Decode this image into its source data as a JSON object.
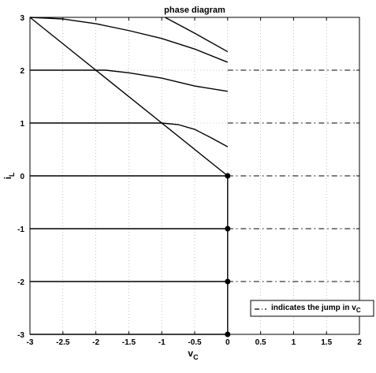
{
  "chart_data": {
    "type": "line",
    "title": "phase diagram",
    "xlabel": "v",
    "xlabel_sub": "C",
    "ylabel": "i",
    "ylabel_sub": "L",
    "xlim": [
      -3,
      2
    ],
    "ylim": [
      -3,
      3
    ],
    "x_ticks": [
      "-3",
      "-2.5",
      "-2",
      "-1.5",
      "-1",
      "-0.5",
      "0",
      "0.5",
      "1",
      "1.5",
      "2"
    ],
    "y_ticks": [
      "-3",
      "-2",
      "-1",
      "0",
      "1",
      "2",
      "3"
    ],
    "grid": true,
    "legend_text": "indicates the jump in v",
    "legend_sub": "C",
    "legend_placement": "bottom-right",
    "line_color": "#000000",
    "series": [
      {
        "style": "solid",
        "x": [
          -3,
          0
        ],
        "y": [
          3,
          0
        ]
      },
      {
        "style": "solid",
        "x": [
          -3,
          0
        ],
        "y": [
          0,
          0
        ]
      },
      {
        "style": "solid",
        "x": [
          -3,
          0
        ],
        "y": [
          -1,
          -1
        ]
      },
      {
        "style": "solid",
        "x": [
          -3,
          0
        ],
        "y": [
          -2,
          -2
        ]
      },
      {
        "style": "solid",
        "x": [
          -3,
          0
        ],
        "y": [
          -3,
          -3
        ]
      },
      {
        "style": "solid",
        "x": [
          0,
          0
        ],
        "y": [
          0,
          -3
        ]
      },
      {
        "style": "solid",
        "x": [
          -3,
          -1,
          -0.75,
          -0.5,
          -0.25,
          0
        ],
        "y": [
          1,
          1,
          0.97,
          0.88,
          0.72,
          0.55
        ]
      },
      {
        "style": "solid",
        "x": [
          -3,
          -1.85,
          -1.5,
          -1,
          -0.5,
          0
        ],
        "y": [
          2,
          2,
          1.95,
          1.85,
          1.7,
          1.6
        ]
      },
      {
        "style": "solid",
        "x": [
          -3,
          -2.5,
          -2,
          -1.5,
          -1,
          -0.5,
          0
        ],
        "y": [
          3,
          2.97,
          2.88,
          2.75,
          2.6,
          2.4,
          2.15
        ]
      },
      {
        "style": "solid",
        "x": [
          -0.95,
          -0.5,
          0
        ],
        "y": [
          3,
          2.7,
          2.35
        ]
      },
      {
        "style": "dashdot",
        "x": [
          0,
          2
        ],
        "y": [
          2,
          2
        ]
      },
      {
        "style": "dashdot",
        "x": [
          0,
          2
        ],
        "y": [
          1,
          1
        ]
      },
      {
        "style": "dashdot",
        "x": [
          0,
          2
        ],
        "y": [
          0,
          0
        ]
      },
      {
        "style": "dashdot",
        "x": [
          0,
          2
        ],
        "y": [
          -1,
          -1
        ]
      },
      {
        "style": "dashdot",
        "x": [
          0,
          2
        ],
        "y": [
          -2,
          -2
        ]
      },
      {
        "style": "dashdot",
        "x": [
          0,
          2
        ],
        "y": [
          -3,
          -3
        ]
      }
    ],
    "points": [
      {
        "x": 0,
        "y": 0
      },
      {
        "x": 0,
        "y": -1
      },
      {
        "x": 0,
        "y": -2
      },
      {
        "x": 0,
        "y": -3
      }
    ]
  }
}
